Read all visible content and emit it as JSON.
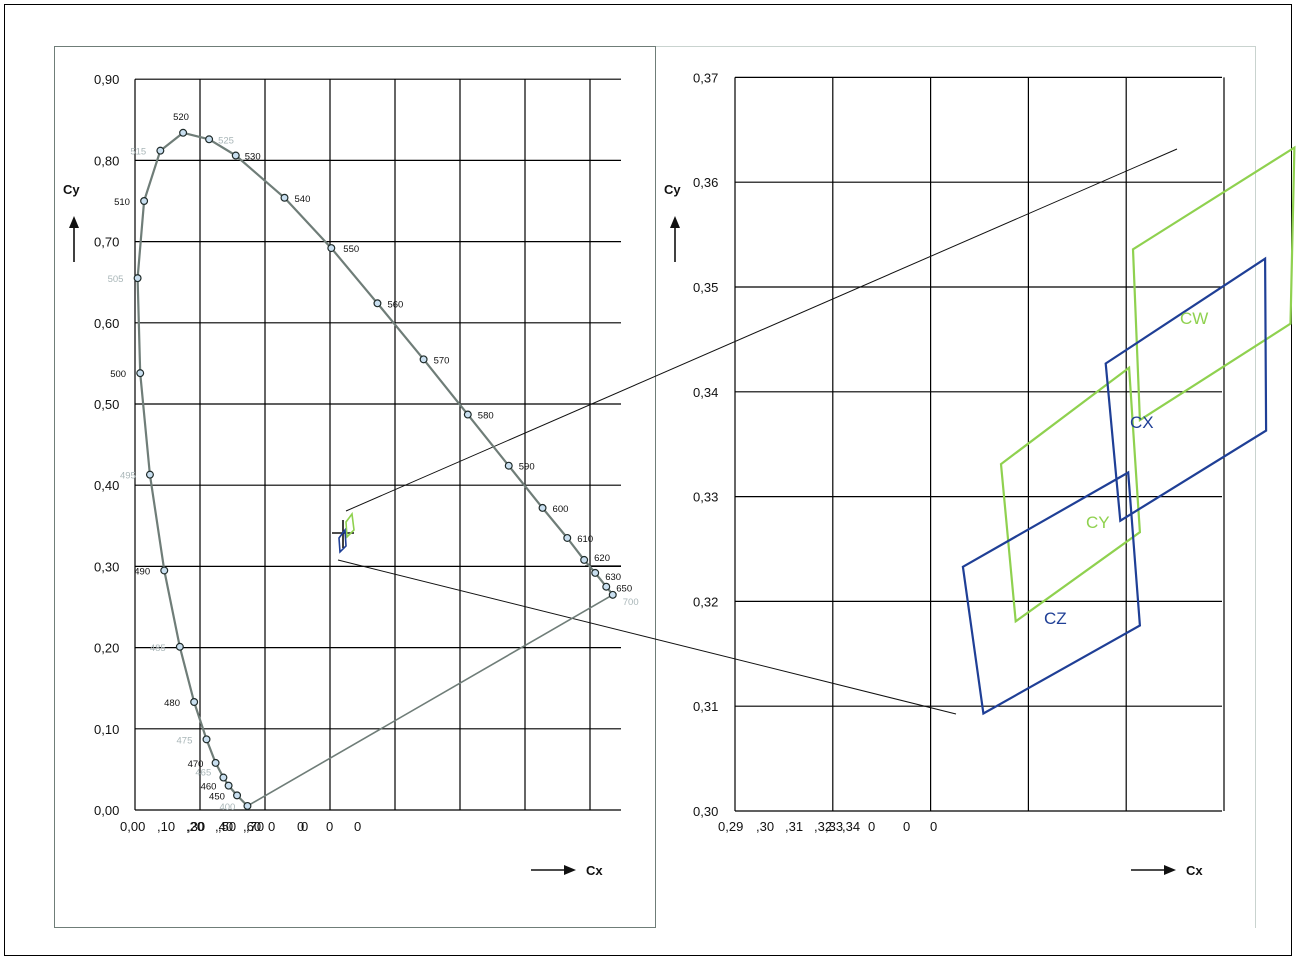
{
  "colors": {
    "locus": "#6f7d78",
    "marker_fill": "#c9dff0",
    "grid": "#000000",
    "blue": "#1f3f96",
    "green": "#8fd14f",
    "label_gray": "#a9b6b8"
  },
  "chart_data": [
    {
      "type": "line",
      "subtype": "cie-chromaticity-diagram",
      "xlabel": "Cx",
      "ylabel": "Cy",
      "xlim": [
        0,
        0.8
      ],
      "ylim": [
        0,
        0.9
      ],
      "grid": true,
      "x_tick_labels": [
        "0,00",
        ",10",
        ",20",
        ",30",
        ",40",
        ",50",
        ",60",
        ",70",
        "0",
        "",
        "0",
        "0",
        "0",
        "0"
      ],
      "y_tick_labels": [
        "0,00",
        "0,10",
        "0,20",
        "0,30",
        "0,40",
        "0,50",
        "0,60",
        "0,70",
        "0,80",
        "0,90"
      ],
      "locus": [
        {
          "label": "400",
          "x": 0.173,
          "y": 0.005,
          "faded": true
        },
        {
          "label": "450",
          "x": 0.157,
          "y": 0.018,
          "faded": false
        },
        {
          "label": "460",
          "x": 0.144,
          "y": 0.03,
          "faded": false
        },
        {
          "label": "465",
          "x": 0.136,
          "y": 0.04,
          "faded": true
        },
        {
          "label": "470",
          "x": 0.124,
          "y": 0.058,
          "faded": false
        },
        {
          "label": "475",
          "x": 0.11,
          "y": 0.087,
          "faded": true
        },
        {
          "label": "480",
          "x": 0.091,
          "y": 0.133,
          "faded": false
        },
        {
          "label": "485",
          "x": 0.069,
          "y": 0.201,
          "faded": true
        },
        {
          "label": "490",
          "x": 0.045,
          "y": 0.295,
          "faded": false
        },
        {
          "label": "495",
          "x": 0.023,
          "y": 0.413,
          "faded": true
        },
        {
          "label": "500",
          "x": 0.008,
          "y": 0.538,
          "faded": false
        },
        {
          "label": "505",
          "x": 0.004,
          "y": 0.655,
          "faded": true
        },
        {
          "label": "510",
          "x": 0.014,
          "y": 0.75,
          "faded": false
        },
        {
          "label": "515",
          "x": 0.039,
          "y": 0.812,
          "faded": true
        },
        {
          "label": "520",
          "x": 0.074,
          "y": 0.834,
          "faded": false
        },
        {
          "label": "525",
          "x": 0.114,
          "y": 0.826,
          "faded": true
        },
        {
          "label": "530",
          "x": 0.155,
          "y": 0.806,
          "faded": false
        },
        {
          "label": "540",
          "x": 0.23,
          "y": 0.754,
          "faded": false
        },
        {
          "label": "550",
          "x": 0.302,
          "y": 0.692,
          "faded": false
        },
        {
          "label": "560",
          "x": 0.373,
          "y": 0.624,
          "faded": false
        },
        {
          "label": "570",
          "x": 0.444,
          "y": 0.555,
          "faded": false
        },
        {
          "label": "580",
          "x": 0.512,
          "y": 0.487,
          "faded": false
        },
        {
          "label": "590",
          "x": 0.575,
          "y": 0.424,
          "faded": false
        },
        {
          "label": "600",
          "x": 0.627,
          "y": 0.372,
          "faded": false
        },
        {
          "label": "610",
          "x": 0.665,
          "y": 0.335,
          "faded": false
        },
        {
          "label": "620",
          "x": 0.691,
          "y": 0.308,
          "faded": false
        },
        {
          "label": "630",
          "x": 0.708,
          "y": 0.292,
          "faded": false
        },
        {
          "label": "650",
          "x": 0.725,
          "y": 0.275,
          "faded": false
        },
        {
          "label": "700",
          "x": 0.735,
          "y": 0.265,
          "faded": true
        }
      ]
    },
    {
      "type": "line",
      "subtype": "chromaticity-region-zoom",
      "xlabel": "Cx",
      "ylabel": "Cy",
      "xlim": [
        0.29,
        0.35
      ],
      "ylim": [
        0.3,
        0.37
      ],
      "grid": true,
      "x_tick_labels": [
        "0,29",
        ",30",
        ",31",
        ",32",
        ",33",
        ",34",
        "0",
        "0"
      ],
      "y_tick_labels": [
        "0,30",
        "0,31",
        "0,32",
        "0,33",
        "0,34",
        "0,35",
        "0,36",
        "0,37"
      ],
      "regions": [
        {
          "name": "CW",
          "color": "green",
          "points": [
            [
              0.3307,
              0.3536
            ],
            [
              0.3472,
              0.3633
            ],
            [
              0.3468,
              0.3465
            ],
            [
              0.3314,
              0.3373
            ]
          ]
        },
        {
          "name": "CY",
          "color": "green",
          "points": [
            [
              0.3172,
              0.3331
            ],
            [
              0.3303,
              0.3423
            ],
            [
              0.3314,
              0.3266
            ],
            [
              0.3187,
              0.3181
            ]
          ]
        },
        {
          "name": "CX",
          "color": "blue",
          "points": [
            [
              0.3279,
              0.3427
            ],
            [
              0.3442,
              0.3527
            ],
            [
              0.3443,
              0.3363
            ],
            [
              0.3294,
              0.3277
            ]
          ]
        },
        {
          "name": "CZ",
          "color": "blue",
          "points": [
            [
              0.3133,
              0.3233
            ],
            [
              0.3302,
              0.3323
            ],
            [
              0.3314,
              0.3177
            ],
            [
              0.3154,
              0.3093
            ]
          ]
        }
      ]
    }
  ]
}
